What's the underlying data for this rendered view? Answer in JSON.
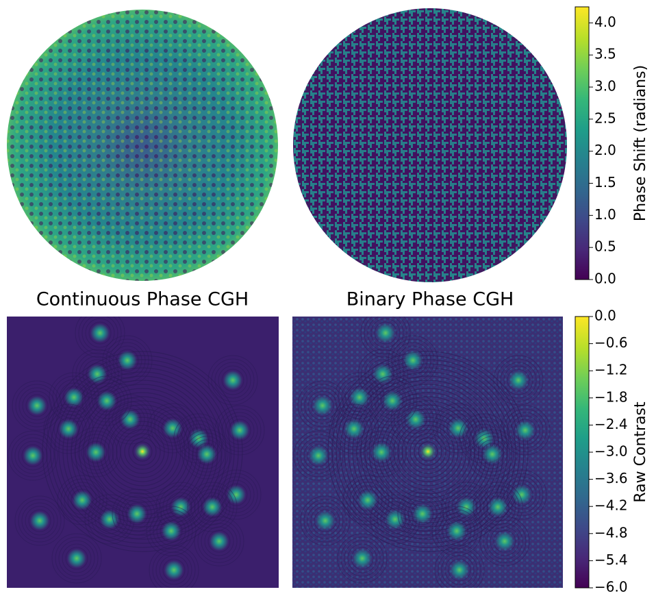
{
  "panels": [
    {
      "title": "Continuous Phase CGH"
    },
    {
      "title": "Binary Phase CGH"
    }
  ],
  "colorbars": [
    {
      "label": "Phase Shift (radians)",
      "lim": [
        0,
        4.25
      ],
      "ticks": [
        {
          "value": 0,
          "label": "0.0"
        },
        {
          "value": 0.5,
          "label": "0.5"
        },
        {
          "value": 1,
          "label": "1.0"
        },
        {
          "value": 1.5,
          "label": "1.5"
        },
        {
          "value": 2,
          "label": "2.0"
        },
        {
          "value": 2.5,
          "label": "2.5"
        },
        {
          "value": 3,
          "label": "3.0"
        },
        {
          "value": 3.5,
          "label": "3.5"
        },
        {
          "value": 4,
          "label": "4.0"
        }
      ]
    },
    {
      "label": "Raw Contrast",
      "lim": [
        -6,
        0
      ],
      "ticks": [
        {
          "value": 0,
          "label": "0.0"
        },
        {
          "value": -0.6,
          "label": "−0.6"
        },
        {
          "value": -1.2,
          "label": "−1.2"
        },
        {
          "value": -1.8,
          "label": "−1.8"
        },
        {
          "value": -2.4,
          "label": "−2.4"
        },
        {
          "value": -3,
          "label": "−3.0"
        },
        {
          "value": -3.6,
          "label": "−3.6"
        },
        {
          "value": -4.2,
          "label": "−4.2"
        },
        {
          "value": -4.8,
          "label": "−4.8"
        },
        {
          "value": -5.4,
          "label": "−5.4"
        },
        {
          "value": -6,
          "label": "−6.0"
        }
      ]
    }
  ]
}
